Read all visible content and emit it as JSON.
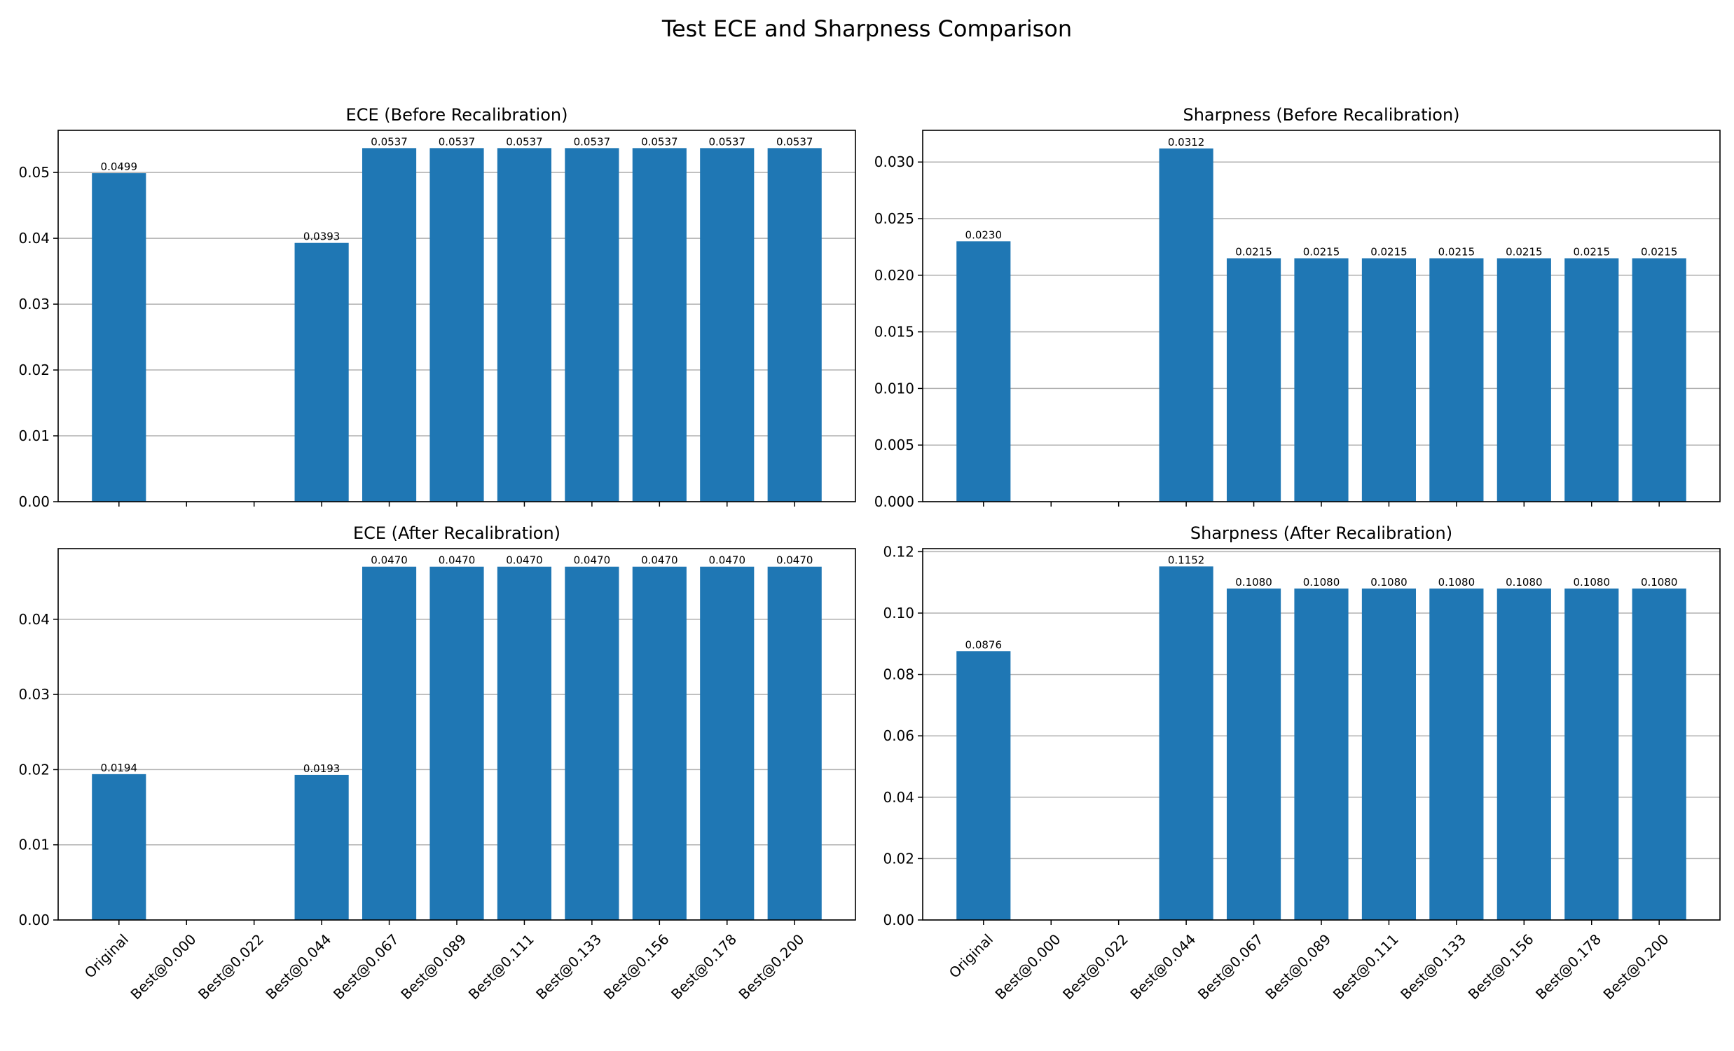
{
  "title": "Test ECE and Sharpness Comparison",
  "colors": {
    "bar": "#1f77b4",
    "grid": "#b0b0b0",
    "axis": "#000000"
  },
  "chart_data": [
    {
      "type": "bar",
      "title": "ECE (Before Recalibration)",
      "categories": [
        "Original",
        "Best@0.000",
        "Best@0.022",
        "Best@0.044",
        "Best@0.067",
        "Best@0.089",
        "Best@0.111",
        "Best@0.133",
        "Best@0.156",
        "Best@0.178",
        "Best@0.200"
      ],
      "values": [
        0.0499,
        null,
        null,
        0.0393,
        0.0537,
        0.0537,
        0.0537,
        0.0537,
        0.0537,
        0.0537,
        0.0537
      ],
      "labels": [
        "0.0499",
        "",
        "",
        "0.0393",
        "0.0537",
        "0.0537",
        "0.0537",
        "0.0537",
        "0.0537",
        "0.0537",
        "0.0537"
      ],
      "ylim": [
        0,
        0.0564
      ],
      "yticks": [
        0,
        0.01,
        0.02,
        0.03,
        0.04,
        0.05
      ],
      "ytick_labels": [
        "0.00",
        "0.01",
        "0.02",
        "0.03",
        "0.04",
        "0.05"
      ],
      "show_xtick_labels": false,
      "grid": "y"
    },
    {
      "type": "bar",
      "title": "Sharpness (Before Recalibration)",
      "categories": [
        "Original",
        "Best@0.000",
        "Best@0.022",
        "Best@0.044",
        "Best@0.067",
        "Best@0.089",
        "Best@0.111",
        "Best@0.133",
        "Best@0.156",
        "Best@0.178",
        "Best@0.200"
      ],
      "values": [
        0.023,
        null,
        null,
        0.0312,
        0.0215,
        0.0215,
        0.0215,
        0.0215,
        0.0215,
        0.0215,
        0.0215
      ],
      "labels": [
        "0.0230",
        "",
        "",
        "0.0312",
        "0.0215",
        "0.0215",
        "0.0215",
        "0.0215",
        "0.0215",
        "0.0215",
        "0.0215"
      ],
      "ylim": [
        0,
        0.0328
      ],
      "yticks": [
        0,
        0.005,
        0.01,
        0.015,
        0.02,
        0.025,
        0.03
      ],
      "ytick_labels": [
        "0.000",
        "0.005",
        "0.010",
        "0.015",
        "0.020",
        "0.025",
        "0.030"
      ],
      "show_xtick_labels": false,
      "grid": "y"
    },
    {
      "type": "bar",
      "title": "ECE (After Recalibration)",
      "categories": [
        "Original",
        "Best@0.000",
        "Best@0.022",
        "Best@0.044",
        "Best@0.067",
        "Best@0.089",
        "Best@0.111",
        "Best@0.133",
        "Best@0.156",
        "Best@0.178",
        "Best@0.200"
      ],
      "values": [
        0.0194,
        null,
        null,
        0.0193,
        0.047,
        0.047,
        0.047,
        0.047,
        0.047,
        0.047,
        0.047
      ],
      "labels": [
        "0.0194",
        "",
        "",
        "0.0193",
        "0.0470",
        "0.0470",
        "0.0470",
        "0.0470",
        "0.0470",
        "0.0470",
        "0.0470"
      ],
      "ylim": [
        0,
        0.0494
      ],
      "yticks": [
        0,
        0.01,
        0.02,
        0.03,
        0.04
      ],
      "ytick_labels": [
        "0.00",
        "0.01",
        "0.02",
        "0.03",
        "0.04"
      ],
      "show_xtick_labels": true,
      "grid": "y"
    },
    {
      "type": "bar",
      "title": "Sharpness (After Recalibration)",
      "categories": [
        "Original",
        "Best@0.000",
        "Best@0.022",
        "Best@0.044",
        "Best@0.067",
        "Best@0.089",
        "Best@0.111",
        "Best@0.133",
        "Best@0.156",
        "Best@0.178",
        "Best@0.200"
      ],
      "values": [
        0.0876,
        null,
        null,
        0.1152,
        0.108,
        0.108,
        0.108,
        0.108,
        0.108,
        0.108,
        0.108
      ],
      "labels": [
        "0.0876",
        "",
        "",
        "0.1152",
        "0.1080",
        "0.1080",
        "0.1080",
        "0.1080",
        "0.1080",
        "0.1080",
        "0.1080"
      ],
      "ylim": [
        0,
        0.121
      ],
      "yticks": [
        0,
        0.02,
        0.04,
        0.06,
        0.08,
        0.1,
        0.12
      ],
      "ytick_labels": [
        "0.00",
        "0.02",
        "0.04",
        "0.06",
        "0.08",
        "0.10",
        "0.12"
      ],
      "show_xtick_labels": true,
      "grid": "y"
    }
  ]
}
